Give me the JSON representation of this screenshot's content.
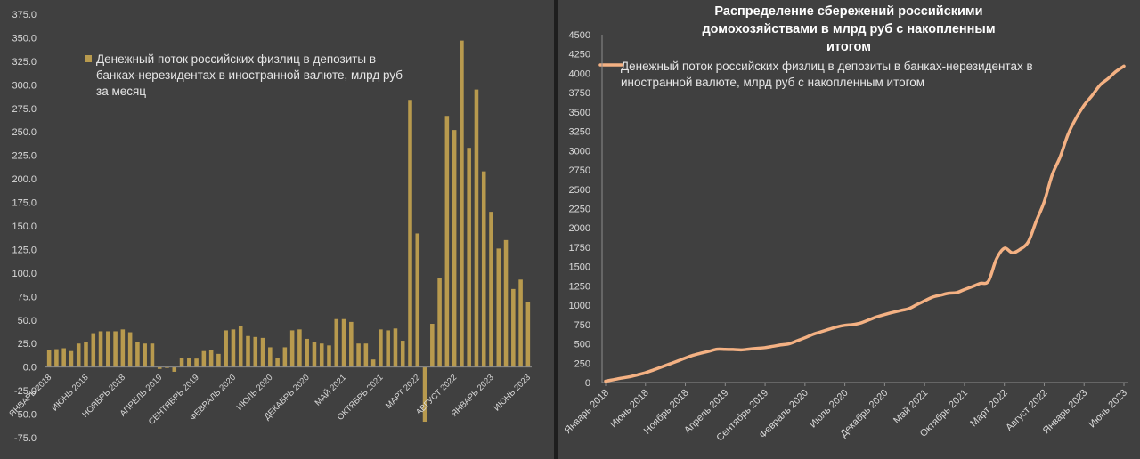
{
  "colors": {
    "bar": "#b89a4e",
    "line": "#f4b183",
    "background": "#404040",
    "text": "#d9d9d9"
  },
  "chart_data": [
    {
      "type": "bar",
      "legend": "Денежный поток российских физлиц в депозиты в банках-нерезидентах в иностранной валюте, млрд руб за месяц",
      "legend_placement": "top-left",
      "grid": false,
      "ylim": [
        -75,
        375
      ],
      "yticks": [
        "-75.0",
        "-50.0",
        "-25.0",
        "0.0",
        "25.0",
        "50.0",
        "75.0",
        "100.0",
        "125.0",
        "150.0",
        "175.0",
        "200.0",
        "225.0",
        "250.0",
        "275.0",
        "300.0",
        "325.0",
        "350.0",
        "375.0"
      ],
      "xticks": [
        {
          "index": 0,
          "label": "ЯНВАРЬ 2018"
        },
        {
          "index": 5,
          "label": "ИЮНЬ 2018"
        },
        {
          "index": 10,
          "label": "НОЯБРЬ 2018"
        },
        {
          "index": 15,
          "label": "АПРЕЛЬ 2019"
        },
        {
          "index": 20,
          "label": "СЕНТЯБРЬ 2019"
        },
        {
          "index": 25,
          "label": "ФЕВРАЛЬ 2020"
        },
        {
          "index": 30,
          "label": "ИЮЛЬ 2020"
        },
        {
          "index": 35,
          "label": "ДЕКАБРЬ 2020"
        },
        {
          "index": 40,
          "label": "МАЙ 2021"
        },
        {
          "index": 45,
          "label": "ОКТЯБРЬ 2021"
        },
        {
          "index": 50,
          "label": "МАРТ 2022"
        },
        {
          "index": 55,
          "label": "АВГУСТ 2022"
        },
        {
          "index": 60,
          "label": "ЯНВАРЬ 2023"
        },
        {
          "index": 65,
          "label": "ИЮНЬ 2023"
        }
      ],
      "series": [
        {
          "name": "Денежный поток российских физлиц в депозиты в банках-нерезидентах в иностранной валюте, млрд руб за месяц",
          "values": [
            18,
            19,
            20,
            17,
            25,
            27,
            36,
            38,
            38,
            38,
            40,
            37,
            27,
            25,
            25,
            -2,
            -1,
            -5,
            10,
            10,
            9,
            17,
            18,
            14,
            39,
            40,
            44,
            33,
            32,
            31,
            21,
            10,
            21,
            39,
            40,
            30,
            27,
            25,
            23,
            51,
            51,
            48,
            25,
            25,
            8,
            40,
            39,
            41,
            28,
            284,
            142,
            -58,
            46,
            95,
            267,
            252,
            347,
            233,
            295,
            208,
            165,
            126,
            135,
            83,
            93,
            69
          ]
        }
      ]
    },
    {
      "type": "line",
      "title": "Распределение сбережений российскими домохозяйствами в млрд руб с накопленным итогом",
      "legend": "Денежный поток российских физлиц в депозиты в банках-нерезидентах в иностранной валюте, млрд руб с накопленным итогом",
      "legend_placement": "top-left",
      "grid": false,
      "ylim": [
        0,
        4500
      ],
      "yticks": [
        "0",
        "250",
        "500",
        "750",
        "1000",
        "1250",
        "1500",
        "1750",
        "2000",
        "2250",
        "2500",
        "2750",
        "3000",
        "3250",
        "3500",
        "3750",
        "4000",
        "4250",
        "4500"
      ],
      "xticks": [
        {
          "index": 0,
          "label": "Январь 2018"
        },
        {
          "index": 5,
          "label": "Июнь 2018"
        },
        {
          "index": 10,
          "label": "Ноябрь 2018"
        },
        {
          "index": 15,
          "label": "Апрель 2019"
        },
        {
          "index": 20,
          "label": "Сентябрь 2019"
        },
        {
          "index": 25,
          "label": "Февраль 2020"
        },
        {
          "index": 30,
          "label": "Июль 2020"
        },
        {
          "index": 35,
          "label": "Декабрь 2020"
        },
        {
          "index": 40,
          "label": "Май 2021"
        },
        {
          "index": 45,
          "label": "Октябрь 2021"
        },
        {
          "index": 50,
          "label": "Март 2022"
        },
        {
          "index": 55,
          "label": "Август 2022"
        },
        {
          "index": 60,
          "label": "Январь 2023"
        },
        {
          "index": 65,
          "label": "Июнь 2023"
        }
      ],
      "series": [
        {
          "name": "Денежный поток российских физлиц в депозиты в банках-нерезидентах в иностранной валюте, млрд руб с накопленным итогом",
          "values": [
            18,
            37,
            57,
            74,
            99,
            126,
            162,
            200,
            238,
            276,
            316,
            353,
            380,
            405,
            430,
            428,
            427,
            422,
            432,
            442,
            451,
            468,
            486,
            500,
            539,
            579,
            623,
            656,
            688,
            719,
            740,
            750,
            771,
            810,
            850,
            880,
            907,
            932,
            955,
            1006,
            1057,
            1105,
            1130,
            1155,
            1163,
            1203,
            1242,
            1283,
            1311,
            1595,
            1737,
            1679,
            1725,
            1820,
            2087,
            2339,
            2686,
            2919,
            3214,
            3422,
            3587,
            3713,
            3848,
            3931,
            4024,
            4093
          ]
        }
      ]
    }
  ]
}
